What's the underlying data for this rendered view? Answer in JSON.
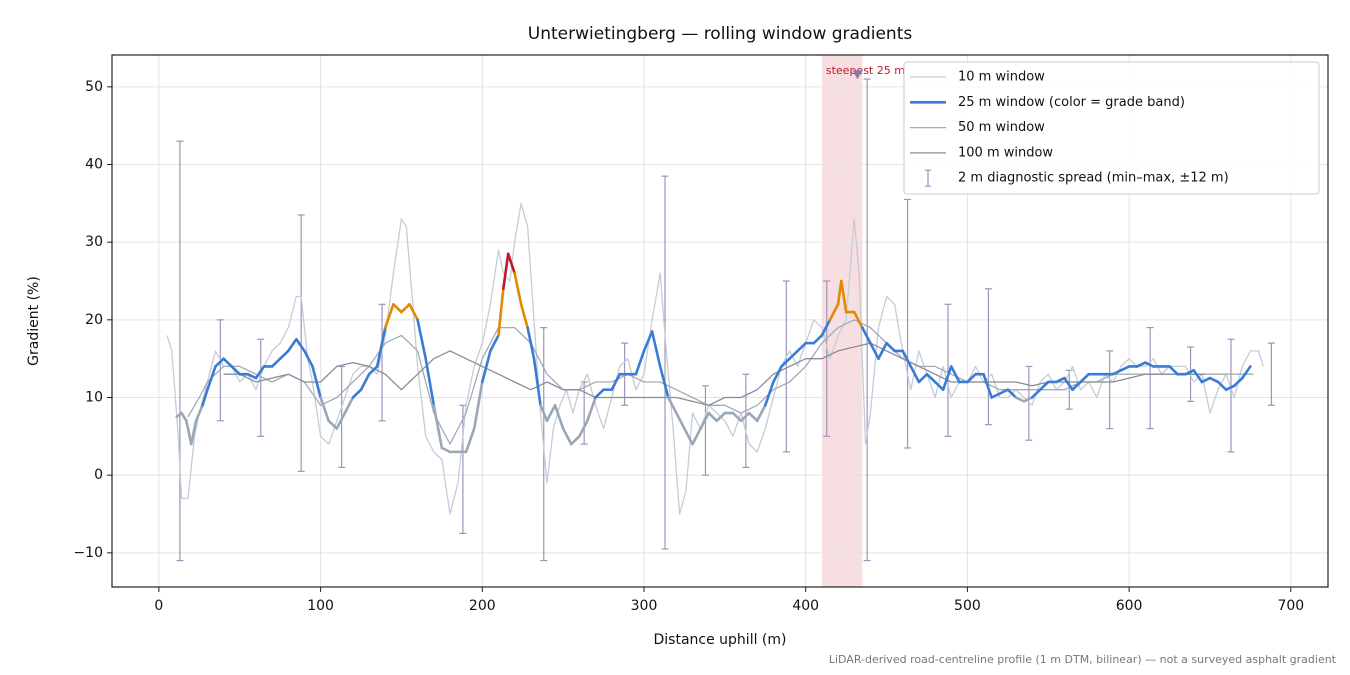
{
  "chart_data": {
    "type": "line",
    "title": "Unterwietingberg — rolling window gradients",
    "xlabel": "Distance uphill (m)",
    "ylabel": "Gradient (%)",
    "footnote": "LiDAR-derived road-centreline profile (1 m DTM, bilinear) — not a surveyed asphalt gradient",
    "xlim": [
      -29,
      723
    ],
    "ylim": [
      -14.4,
      54.1
    ],
    "xticks": [
      0,
      100,
      200,
      300,
      400,
      500,
      600,
      700
    ],
    "yticks": [
      {
        "value": -10,
        "label": "−10"
      },
      0,
      10,
      20,
      30,
      40,
      50
    ],
    "grid": true,
    "legend": "upper right",
    "series": [
      {
        "name": "10 m window",
        "color": "#c5ccd6",
        "width": 1.3,
        "x": [
          5,
          8,
          12,
          14,
          18,
          22,
          25,
          30,
          35,
          40,
          45,
          50,
          55,
          60,
          65,
          70,
          75,
          80,
          85,
          88,
          92,
          95,
          100,
          105,
          110,
          115,
          120,
          125,
          130,
          135,
          140,
          145,
          150,
          153,
          157,
          160,
          165,
          170,
          175,
          180,
          185,
          190,
          195,
          200,
          205,
          210,
          213,
          217,
          220,
          224,
          228,
          232,
          236,
          240,
          244,
          248,
          252,
          256,
          260,
          265,
          270,
          275,
          280,
          285,
          290,
          295,
          300,
          305,
          310,
          313,
          318,
          322,
          326,
          330,
          335,
          340,
          345,
          350,
          355,
          360,
          365,
          370,
          375,
          380,
          385,
          390,
          395,
          400,
          405,
          410,
          415,
          420,
          425,
          430,
          433,
          437,
          440,
          445,
          450,
          455,
          460,
          465,
          470,
          475,
          480,
          485,
          490,
          495,
          500,
          505,
          510,
          515,
          520,
          525,
          530,
          535,
          540,
          545,
          550,
          555,
          560,
          565,
          570,
          575,
          580,
          585,
          590,
          595,
          600,
          605,
          610,
          615,
          620,
          625,
          630,
          635,
          640,
          645,
          650,
          655,
          660,
          665,
          670,
          675,
          680,
          683
        ],
        "values": [
          18,
          16,
          5,
          -3,
          -3,
          5,
          8,
          12,
          16,
          14,
          14,
          12,
          13,
          11,
          14,
          16,
          17,
          19,
          23,
          23,
          15,
          12,
          5,
          4,
          7,
          10,
          13,
          14,
          14,
          13,
          18,
          26,
          33,
          32,
          22,
          14,
          5,
          3,
          2,
          -5,
          -1,
          9,
          14,
          17,
          22,
          29,
          26,
          25,
          30,
          35,
          32,
          20,
          8,
          -1,
          6,
          9,
          11,
          8,
          11,
          13,
          9,
          6,
          10,
          14,
          15,
          11,
          13,
          20,
          26,
          18,
          6,
          -5,
          -2,
          8,
          6,
          9,
          8,
          7,
          5,
          8,
          4,
          3,
          6,
          10,
          14,
          16,
          14,
          17,
          20,
          19,
          15,
          18,
          20,
          33,
          26,
          4,
          8,
          19,
          23,
          22,
          16,
          11,
          16,
          13,
          10,
          14,
          10,
          12,
          12,
          14,
          12,
          13,
          10,
          10,
          11,
          10,
          9,
          12,
          13,
          11,
          12,
          14,
          11,
          12,
          10,
          13,
          12,
          14,
          15,
          14,
          14,
          15,
          13,
          14,
          14,
          14,
          12,
          13,
          8,
          11,
          13,
          10,
          14,
          16,
          16,
          14
        ]
      },
      {
        "name": "25 m window (color = grade band)",
        "color": "#3a7bd5",
        "width": 2.6,
        "band_edges": [
          10,
          20,
          25
        ],
        "band_colors": [
          "#9aa7b6",
          "#3a7bd5",
          "#e08a00",
          "#c0182a"
        ],
        "x": [
          11,
          14,
          17,
          20,
          23,
          27,
          30,
          35,
          40,
          45,
          50,
          55,
          60,
          65,
          70,
          75,
          80,
          85,
          90,
          95,
          100,
          105,
          110,
          115,
          120,
          125,
          130,
          135,
          140,
          145,
          150,
          155,
          160,
          165,
          170,
          175,
          180,
          185,
          190,
          195,
          200,
          205,
          210,
          213,
          216,
          220,
          224,
          228,
          232,
          236,
          240,
          245,
          250,
          255,
          260,
          265,
          270,
          275,
          280,
          285,
          290,
          295,
          300,
          305,
          310,
          315,
          320,
          325,
          330,
          335,
          340,
          345,
          350,
          355,
          360,
          365,
          370,
          375,
          380,
          385,
          390,
          395,
          400,
          405,
          410,
          415,
          420,
          422,
          425,
          430,
          435,
          440,
          445,
          450,
          455,
          460,
          465,
          470,
          475,
          480,
          485,
          490,
          495,
          500,
          505,
          510,
          515,
          520,
          525,
          530,
          535,
          540,
          545,
          550,
          555,
          560,
          565,
          570,
          575,
          580,
          585,
          590,
          595,
          600,
          605,
          610,
          615,
          620,
          625,
          630,
          635,
          640,
          645,
          650,
          655,
          660,
          665,
          670,
          675
        ],
        "values": [
          7.5,
          8,
          7,
          4,
          7,
          9,
          11,
          14,
          15,
          14,
          13,
          13,
          12.5,
          14,
          14,
          15,
          16,
          17.5,
          16,
          14,
          10,
          7,
          6,
          8,
          10,
          11,
          13,
          14,
          19,
          22,
          21,
          22,
          20,
          15,
          9,
          3.5,
          3,
          3,
          3,
          6,
          12,
          16,
          18,
          24,
          28.5,
          26,
          22,
          19,
          15,
          9,
          7,
          9,
          6,
          4,
          5,
          7,
          10,
          11,
          11,
          13,
          13,
          13,
          16,
          18.5,
          14,
          10,
          8,
          6,
          4,
          6,
          8,
          7,
          8,
          8,
          7,
          8,
          7,
          9,
          12,
          14,
          15,
          16,
          17,
          17,
          18,
          20,
          22,
          25,
          21,
          21,
          19,
          17,
          15,
          17,
          16,
          16,
          14,
          12,
          13,
          12,
          11,
          14,
          12,
          12,
          13,
          13,
          10,
          10.5,
          11,
          10,
          9.5,
          10,
          11,
          12,
          12,
          12.5,
          11,
          12,
          13,
          13,
          13,
          13,
          13.5,
          14,
          14,
          14.5,
          14,
          14,
          14,
          13,
          13,
          13.5,
          12,
          12.5,
          12,
          11,
          11.5,
          12.5,
          14
        ]
      },
      {
        "name": "50 m window",
        "color": "#a3abb8",
        "width": 1.3,
        "x": [
          18,
          25,
          30,
          40,
          50,
          60,
          70,
          80,
          90,
          100,
          110,
          120,
          130,
          140,
          150,
          160,
          170,
          180,
          190,
          200,
          210,
          220,
          230,
          240,
          250,
          260,
          270,
          280,
          290,
          300,
          310,
          320,
          330,
          340,
          350,
          360,
          370,
          380,
          390,
          400,
          410,
          420,
          430,
          440,
          450,
          460,
          470,
          480,
          490,
          500,
          510,
          520,
          530,
          540,
          550,
          560,
          570,
          580,
          590,
          600,
          610,
          620,
          630,
          640,
          650,
          660,
          670,
          677
        ],
        "values": [
          7.5,
          10,
          12,
          14,
          14,
          13,
          12,
          13,
          12,
          9,
          10,
          12,
          14,
          17,
          18,
          16,
          8,
          4,
          8,
          15,
          19,
          19,
          17,
          13,
          11,
          11,
          12,
          12,
          13,
          12,
          12,
          11,
          10,
          9,
          9,
          8,
          9,
          11,
          12,
          14,
          17,
          19,
          20,
          19,
          17,
          15,
          14,
          14,
          13,
          12,
          12,
          11,
          11,
          11,
          11,
          11,
          12,
          12,
          13,
          13,
          13,
          13,
          13,
          13,
          13,
          13,
          13,
          13
        ]
      },
      {
        "name": "100 m window",
        "color": "#858d98",
        "width": 1.3,
        "x": [
          40,
          50,
          60,
          70,
          80,
          90,
          100,
          110,
          120,
          130,
          140,
          150,
          160,
          170,
          180,
          190,
          200,
          210,
          220,
          230,
          240,
          250,
          260,
          270,
          280,
          290,
          300,
          310,
          320,
          330,
          340,
          350,
          360,
          370,
          380,
          390,
          400,
          410,
          420,
          430,
          440,
          450,
          460,
          470,
          480,
          490,
          500,
          510,
          520,
          530,
          540,
          550,
          560,
          570,
          580,
          590,
          600,
          610,
          620,
          630,
          640,
          647
        ],
        "values": [
          13,
          13,
          12,
          12.5,
          13,
          12,
          12,
          14,
          14.5,
          14,
          13,
          11,
          13,
          15,
          16,
          15,
          14,
          13,
          12,
          11,
          12,
          11,
          11,
          10,
          10,
          10,
          10,
          10,
          10,
          9.5,
          9,
          10,
          10,
          11,
          13,
          14,
          15,
          15,
          16,
          16.5,
          17,
          16,
          15,
          14,
          13,
          12,
          12,
          12,
          12,
          12,
          11.5,
          12,
          12,
          12,
          12,
          12,
          12.5,
          13,
          13,
          13,
          13,
          13
        ]
      }
    ],
    "error_bars": {
      "name": "2 m diagnostic spread (min–max, ±12 m)",
      "color": "#9a96bc",
      "x": [
        13,
        38,
        63,
        88,
        113,
        138,
        188,
        238,
        263,
        288,
        313,
        338,
        363,
        388,
        413,
        438,
        463,
        488,
        513,
        538,
        563,
        588,
        613,
        638,
        663,
        688
      ],
      "low": [
        -11,
        7,
        5,
        0.5,
        1,
        7,
        -7.5,
        -11,
        4,
        9,
        -9.5,
        0,
        1,
        3,
        5,
        -11,
        3.5,
        5,
        6.5,
        4.5,
        8.5,
        6,
        6,
        9.5,
        3,
        9
      ],
      "high": [
        43,
        20,
        17.5,
        33.5,
        14,
        22,
        9,
        19,
        12,
        17,
        38.5,
        11.5,
        13,
        25,
        25,
        51,
        35.5,
        22,
        24,
        14,
        13.5,
        16,
        19,
        16.5,
        17.5,
        17
      ]
    },
    "highlight": {
      "label": "steepest 25 m",
      "span": [
        410,
        435
      ],
      "color": "#e8a0a8",
      "text_color": "#c0182a",
      "marker_x": 432,
      "marker_y": 51.5,
      "marker_color": "#8a7aa8"
    }
  }
}
